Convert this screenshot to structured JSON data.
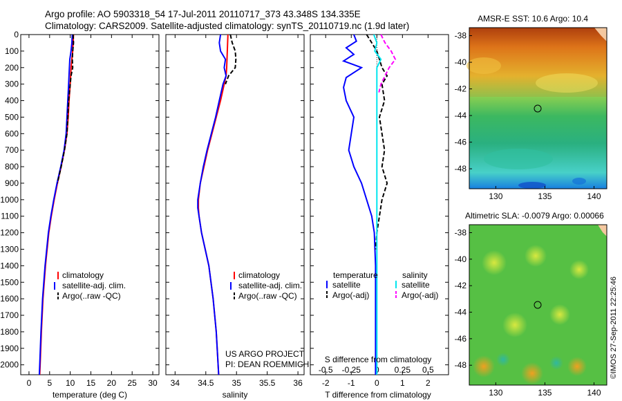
{
  "header": {
    "line1": "Argo profile: AO 5903318_54 17-Jul-2011 20110717_373 43.348S 134.335E",
    "line2": "Climatology: CARS2009. Satellite-adjusted climatology: synTS_20110719.nc (1.9d later)"
  },
  "colors": {
    "climatology": "#ff0000",
    "satellite": "#0000ff",
    "argo": "#000000",
    "sal_satellite": "#00e5ee",
    "sal_argo": "#ff00ff"
  },
  "project": {
    "line1": "US ARGO PROJECT",
    "line2": "PI: DEAN ROEMMICH"
  },
  "legend_profiles": {
    "climatology": "climatology",
    "satellite": "satellite-adj. clim.",
    "argo": "Argo(..raw -QC)"
  },
  "legend_diff": {
    "temperature_heading": "temperature",
    "salinity_heading": "salinity",
    "satellite": "satellite",
    "argo": "Argo(-adj)"
  },
  "maps": {
    "sst_title": "AMSR-E SST: 10.6 Argo: 10.4",
    "sla_title": "Altimetric SLA: -0.0079 Argo: 0.00066",
    "credit": "©IMOS 27-Sep-2011 22:25:46"
  },
  "chart_data": [
    {
      "type": "line",
      "name": "temperature profile",
      "xlabel": "temperature (deg C)",
      "ylabel": "",
      "xlim": [
        -2,
        31.5
      ],
      "ylim": [
        2060,
        0
      ],
      "xticks": [
        0,
        5,
        10,
        15,
        20,
        25,
        30
      ],
      "yticks": [
        0,
        100,
        200,
        300,
        400,
        500,
        600,
        700,
        800,
        900,
        1000,
        1100,
        1200,
        1300,
        1400,
        1500,
        1600,
        1700,
        1800,
        1900,
        2000
      ],
      "series": [
        {
          "name": "climatology",
          "depth": [
            0,
            50,
            100,
            150,
            200,
            300,
            400,
            500,
            600,
            700,
            800,
            900,
            1000,
            1100,
            1200,
            1400,
            1600,
            1800,
            2000,
            2060
          ],
          "values": [
            10.8,
            10.7,
            10.6,
            10.4,
            10.2,
            10.0,
            9.7,
            9.5,
            9.2,
            8.6,
            7.8,
            6.9,
            6.1,
            5.4,
            4.8,
            4.0,
            3.4,
            3.0,
            2.7,
            2.6
          ]
        },
        {
          "name": "satellite-adj. clim.",
          "depth": [
            0,
            50,
            100,
            150,
            200,
            300,
            400,
            500,
            600,
            700,
            800,
            900,
            1000,
            1100,
            1200,
            1400,
            1600,
            1800,
            2000,
            2060
          ],
          "values": [
            10.5,
            10.4,
            10.2,
            9.9,
            9.8,
            9.6,
            9.4,
            9.2,
            9.0,
            8.5,
            7.7,
            6.8,
            6.0,
            5.3,
            4.7,
            3.9,
            3.3,
            2.9,
            2.6,
            2.5
          ]
        },
        {
          "name": "Argo(..raw -QC)",
          "depth": [
            0,
            50,
            100,
            150,
            200,
            250,
            300,
            400,
            500,
            600,
            700,
            800,
            900
          ],
          "values": [
            10.7,
            10.8,
            10.6,
            10.5,
            10.6,
            10.2,
            10.0,
            9.6,
            9.4,
            9.2,
            8.6,
            7.8,
            6.9
          ]
        }
      ]
    },
    {
      "type": "line",
      "name": "salinity profile",
      "xlabel": "salinity",
      "ylabel": "",
      "xlim": [
        33.85,
        36.1
      ],
      "ylim": [
        2060,
        0
      ],
      "xticks": [
        34,
        34.5,
        35,
        35.5,
        36
      ],
      "series": [
        {
          "name": "climatology",
          "depth": [
            0,
            100,
            200,
            250,
            300,
            400,
            500,
            600,
            700,
            800,
            900,
            1000,
            1050,
            1100,
            1200,
            1300,
            1400,
            1600,
            1800,
            2000,
            2060
          ],
          "values": [
            34.86,
            34.85,
            34.84,
            34.83,
            34.8,
            34.74,
            34.67,
            34.6,
            34.53,
            34.47,
            34.41,
            34.38,
            34.38,
            34.39,
            34.43,
            34.49,
            34.55,
            34.62,
            34.67,
            34.7,
            34.71
          ]
        },
        {
          "name": "satellite-adj. clim.",
          "depth": [
            0,
            50,
            100,
            150,
            200,
            250,
            300,
            400,
            500,
            600,
            700,
            800,
            900,
            1000,
            1050,
            1100,
            1200,
            1300,
            1400,
            1600,
            1800,
            2000,
            2060
          ],
          "values": [
            34.74,
            34.72,
            34.74,
            34.82,
            34.8,
            34.83,
            34.78,
            34.72,
            34.66,
            34.59,
            34.52,
            34.46,
            34.41,
            34.37,
            34.37,
            34.39,
            34.43,
            34.49,
            34.55,
            34.62,
            34.67,
            34.7,
            34.71
          ]
        },
        {
          "name": "Argo(..raw -QC)",
          "depth": [
            0,
            50,
            100,
            150,
            200,
            250,
            300
          ],
          "values": [
            34.9,
            34.93,
            34.98,
            34.99,
            34.98,
            34.87,
            34.82
          ]
        }
      ]
    },
    {
      "type": "line",
      "name": "difference from climatology",
      "xlabel": "T difference from climatology",
      "x2label": "S difference from climatology",
      "xlim": [
        -2.6,
        2.8
      ],
      "x2lim": [
        -0.65,
        0.7
      ],
      "ylim": [
        2060,
        0
      ],
      "xticks": [
        -2,
        -1,
        0,
        1,
        2
      ],
      "x2ticks": [
        -0.5,
        -0.25,
        0,
        0.25,
        0.5
      ],
      "series": [
        {
          "name": "temperature satellite",
          "axis": "T",
          "depth": [
            0,
            40,
            80,
            120,
            160,
            200,
            260,
            320,
            400,
            500,
            600,
            700,
            800,
            900,
            1000,
            1100,
            1200,
            1400,
            1600,
            1800,
            2000,
            2060
          ],
          "values": [
            -0.9,
            -0.8,
            -1.2,
            -0.9,
            -1.3,
            -0.6,
            -1.2,
            -1.3,
            -1.2,
            -0.9,
            -1.0,
            -1.1,
            -0.9,
            -0.6,
            -0.4,
            -0.2,
            -0.1,
            -0.05,
            -0.05,
            -0.05,
            -0.05,
            -0.05
          ]
        },
        {
          "name": "temperature Argo(-adj)",
          "axis": "T",
          "depth": [
            0,
            50,
            100,
            150,
            200,
            250,
            300,
            400,
            500,
            600,
            700,
            800,
            900,
            1000,
            1100,
            1200,
            1300
          ],
          "values": [
            -0.4,
            -0.2,
            0.0,
            0.1,
            0.2,
            0.4,
            0.2,
            0.3,
            0.1,
            0.2,
            0.3,
            0.2,
            0.4,
            0.2,
            0.1,
            0.0,
            -0.05
          ]
        },
        {
          "name": "salinity satellite",
          "axis": "S",
          "depth": [
            0,
            50,
            100,
            150,
            200,
            300,
            400,
            600,
            800,
            1000,
            1200,
            1400,
            1600,
            1800,
            2000,
            2060
          ],
          "values": [
            -0.03,
            0.0,
            -0.02,
            0.04,
            0.0,
            0.0,
            0.0,
            0.0,
            0.0,
            0.0,
            0.0,
            0.0,
            0.0,
            0.0,
            0.0,
            0.0
          ]
        },
        {
          "name": "salinity Argo(-adj)",
          "axis": "S",
          "depth": [
            0,
            50,
            100,
            150,
            200,
            250,
            300,
            350
          ],
          "values": [
            0.04,
            0.08,
            0.14,
            0.18,
            0.12,
            0.08,
            0.04,
            0.02
          ]
        }
      ]
    }
  ]
}
